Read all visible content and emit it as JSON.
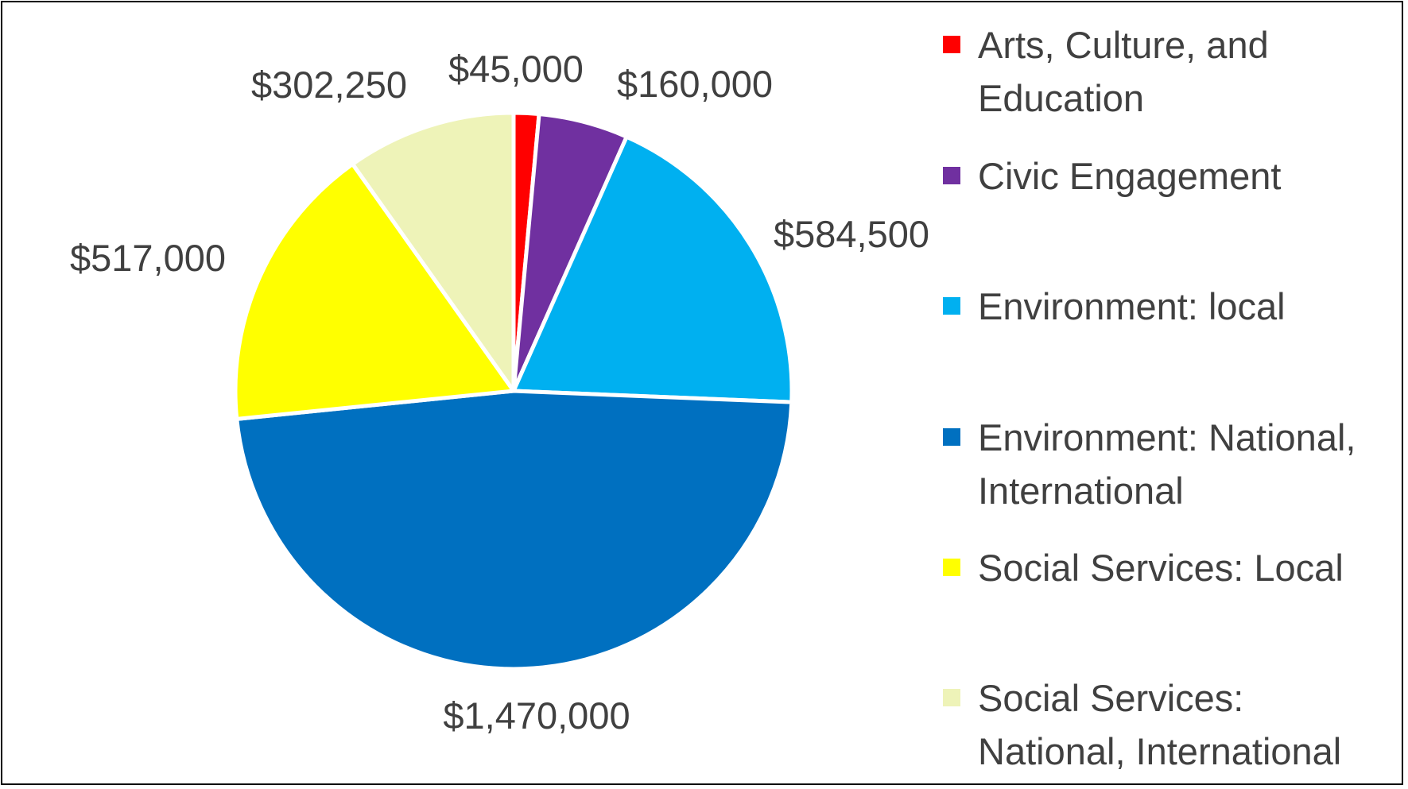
{
  "chart_data": {
    "type": "pie",
    "start": "top",
    "direction": "clockwise",
    "legend_position": "right",
    "slices": [
      {
        "name": "Arts, Culture, and Education",
        "value": 45000,
        "label": "$45,000",
        "color": "#FF0000"
      },
      {
        "name": "Civic Engagement",
        "value": 160000,
        "label": "$160,000",
        "color": "#7030A0"
      },
      {
        "name": "Environment: local",
        "value": 584500,
        "label": "$584,500",
        "color": "#00B0F0"
      },
      {
        "name": "Environment: National, International",
        "value": 1470000,
        "label": "$1,470,000",
        "color": "#0070C0"
      },
      {
        "name": "Social Services: Local",
        "value": 517000,
        "label": "$517,000",
        "color": "#FFFF00"
      },
      {
        "name": "Social Services: National, International",
        "value": 302250,
        "label": "$302,250",
        "color": "#EEF3B8"
      }
    ]
  },
  "legend": {
    "items": [
      {
        "lines": [
          "Arts, Culture, and",
          "Education"
        ]
      },
      {
        "lines": [
          "Civic Engagement"
        ]
      },
      {
        "lines": [
          "Environment: local"
        ]
      },
      {
        "lines": [
          "Environment: National,",
          "International"
        ]
      },
      {
        "lines": [
          "Social Services: Local"
        ]
      },
      {
        "lines": [
          "Social Services:",
          "National, International"
        ]
      }
    ]
  }
}
